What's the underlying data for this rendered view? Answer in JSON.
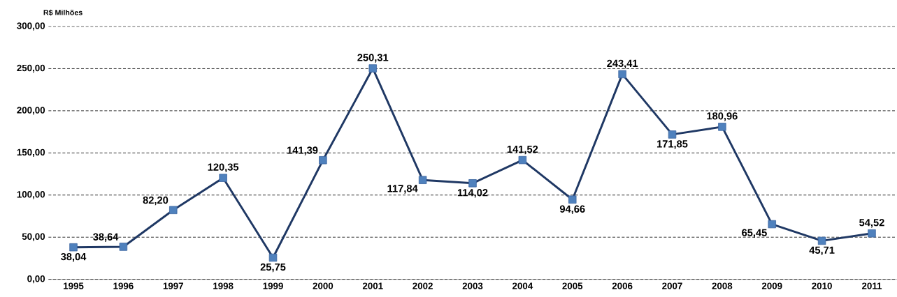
{
  "chart_data": {
    "type": "line",
    "ylabel": "R$ Milhões",
    "categories": [
      "1995",
      "1996",
      "1997",
      "1998",
      "1999",
      "2000",
      "2001",
      "2002",
      "2003",
      "2004",
      "2005",
      "2006",
      "2007",
      "2008",
      "2009",
      "2010",
      "2011"
    ],
    "series": [
      {
        "color": "#1f3864",
        "values": [
          38.04,
          38.64,
          82.2,
          120.35,
          25.75,
          141.39,
          250.31,
          117.84,
          114.02,
          141.52,
          94.66,
          243.41,
          171.85,
          180.96,
          65.45,
          45.71,
          54.52
        ],
        "value_labels": [
          "38,04",
          "38,64",
          "82,20",
          "120,35",
          "25,75",
          "141,39",
          "250,31",
          "117,84",
          "114,02",
          "141,52",
          "94,66",
          "243,41",
          "171,85",
          "180,96",
          "65,45",
          "45,71",
          "54,52"
        ]
      }
    ],
    "ylim": [
      0,
      300
    ],
    "yticks": [
      {
        "value": 0,
        "label": "0,00"
      },
      {
        "value": 50,
        "label": "50,00"
      },
      {
        "value": 100,
        "label": "100,00"
      },
      {
        "value": 150,
        "label": "150,00"
      },
      {
        "value": 200,
        "label": "200,00"
      },
      {
        "value": 250,
        "label": "250,00"
      },
      {
        "value": 300,
        "label": "300,00"
      }
    ],
    "grid": "y",
    "marker": "square",
    "line_style": "solid"
  }
}
